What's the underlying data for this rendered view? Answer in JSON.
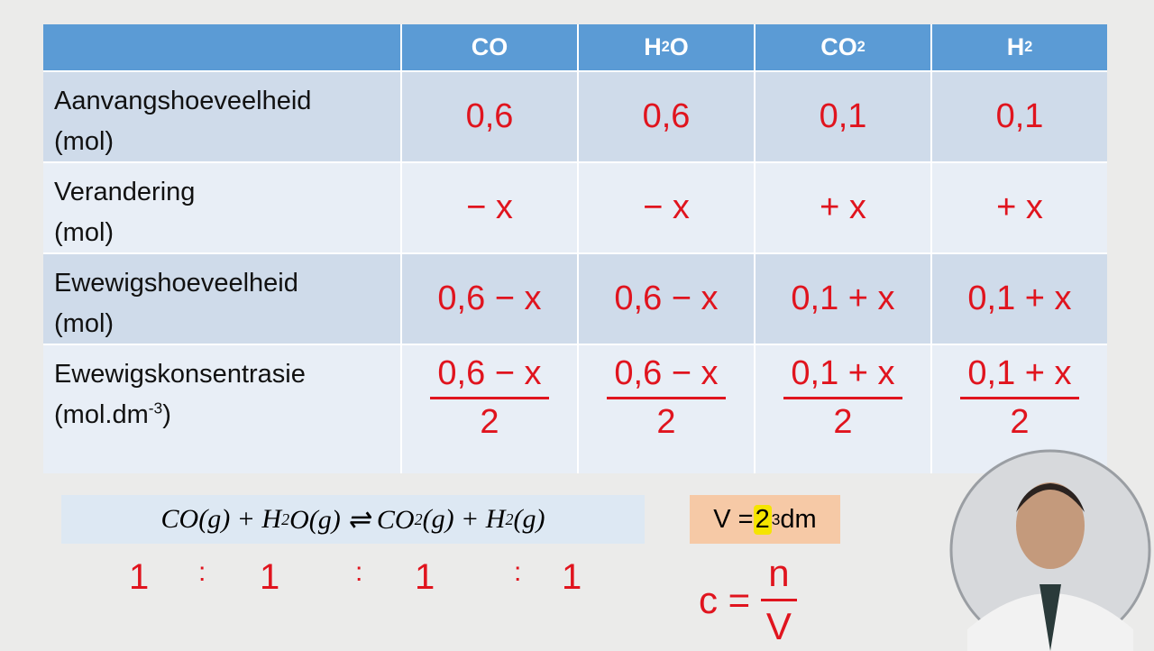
{
  "table": {
    "header": [
      {
        "base": "CO"
      },
      {
        "base": "H",
        "sub": "2",
        "after": "O"
      },
      {
        "base": "CO",
        "sub": "2"
      },
      {
        "base": "H",
        "sub": "2"
      }
    ],
    "rows": [
      {
        "label": "Aanvangshoeveelheid",
        "unit": {
          "base": "(mol)"
        },
        "cells": [
          "0,6",
          "0,6",
          "0,1",
          "0,1"
        ]
      },
      {
        "label": "Verandering",
        "unit": {
          "base": "(mol)"
        },
        "cells": [
          "− x",
          "− x",
          "+ x",
          "+ x"
        ]
      },
      {
        "label": "Ewewigshoeveelheid",
        "unit": {
          "base": "(mol)"
        },
        "cells": [
          "0,6 − x",
          "0,6 − x",
          "0,1 + x",
          "0,1 + x"
        ]
      },
      {
        "label": "Ewewigskonsentrasie",
        "unit": {
          "base": "(mol.dm",
          "sup": "-3",
          "after": ")"
        },
        "cells": [
          {
            "num": "0,6 − x",
            "den": "2"
          },
          {
            "num": "0,6 − x",
            "den": "2"
          },
          {
            "num": "0,1 + x",
            "den": "2"
          },
          {
            "num": "0,1 + x",
            "den": "2"
          }
        ]
      }
    ]
  },
  "equation": [
    {
      "text": "CO(g) + H"
    },
    {
      "sub": "2"
    },
    {
      "text": "O(g) ⇌ CO"
    },
    {
      "sub": "2"
    },
    {
      "text": " (g) + H"
    },
    {
      "sub": "2"
    },
    {
      "text": "(g)"
    }
  ],
  "ratio": {
    "numbers": [
      "1",
      "1",
      "1",
      "1"
    ],
    "separator": ":"
  },
  "volume": {
    "base": "V = ",
    "value": "2",
    "unit": " dm",
    "sup": "3"
  },
  "formula": {
    "lhs": "c =",
    "num": "n",
    "den": "V"
  }
}
